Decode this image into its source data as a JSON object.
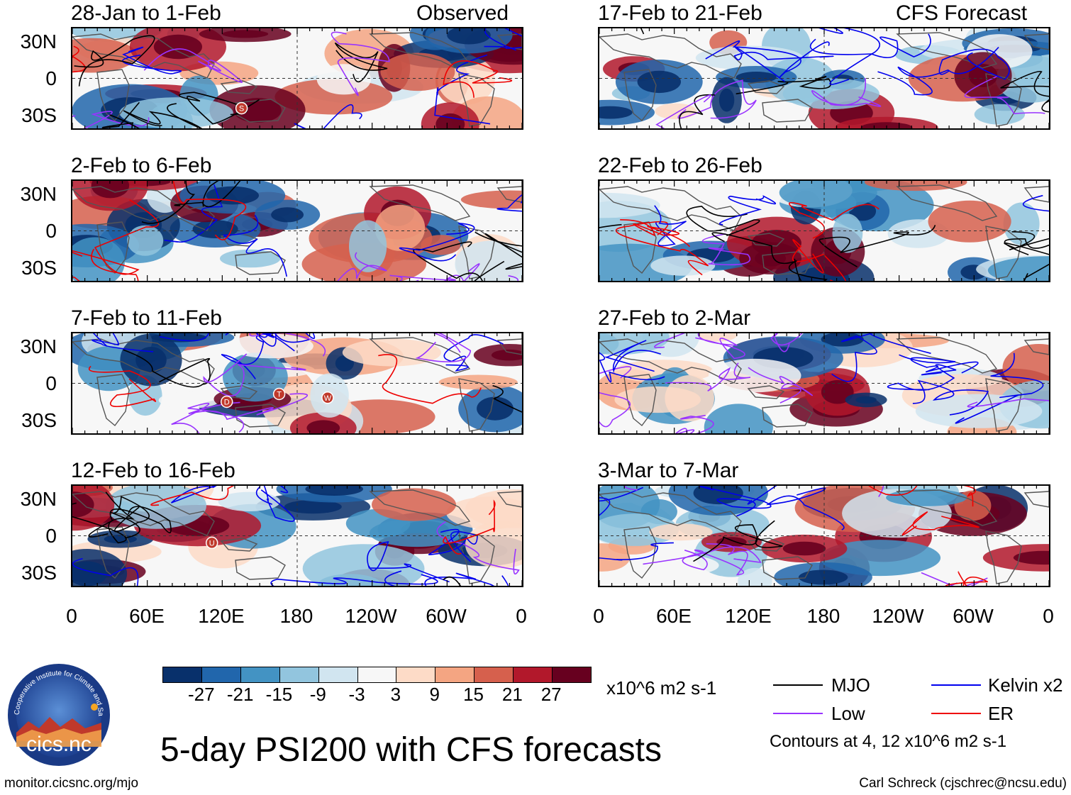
{
  "panels": [
    {
      "id": "p1",
      "title": "28-Jan to 1-Feb",
      "tag": "Observed",
      "seed": 3,
      "letters": [
        "S"
      ]
    },
    {
      "id": "p2",
      "title": "2-Feb to 6-Feb",
      "tag": "",
      "seed": 7,
      "letters": []
    },
    {
      "id": "p3",
      "title": "7-Feb to 11-Feb",
      "tag": "",
      "seed": 11,
      "letters": [
        "D",
        "T",
        "W"
      ]
    },
    {
      "id": "p4",
      "title": "12-Feb to 16-Feb",
      "tag": "",
      "seed": 19,
      "letters": [
        "U"
      ]
    },
    {
      "id": "p5",
      "title": "17-Feb to 21-Feb",
      "tag": "CFS Forecast",
      "seed": 23,
      "letters": []
    },
    {
      "id": "p6",
      "title": "22-Feb to 26-Feb",
      "tag": "",
      "seed": 29,
      "letters": []
    },
    {
      "id": "p7",
      "title": "27-Feb to 2-Mar",
      "tag": "",
      "seed": 31,
      "letters": []
    },
    {
      "id": "p8",
      "title": "3-Mar to 7-Mar",
      "tag": "",
      "seed": 37,
      "letters": []
    }
  ],
  "y_axis": [
    "30N",
    "0",
    "30S"
  ],
  "x_axis": [
    "0",
    "60E",
    "120E",
    "180",
    "120W",
    "60W",
    "0"
  ],
  "colorbar": {
    "colors": [
      "#08306b",
      "#2166ac",
      "#4393c3",
      "#92c5de",
      "#d1e5f0",
      "#f7f7f7",
      "#fddbc7",
      "#f4a582",
      "#d6604d",
      "#b2182b",
      "#67001f"
    ],
    "labels": [
      "-27",
      "-21",
      "-15",
      "-9",
      "-3",
      "3",
      "9",
      "15",
      "21",
      "27"
    ],
    "units": "x10^6 m2 s-1"
  },
  "legend": {
    "items": [
      {
        "label": "MJO",
        "color": "#000000"
      },
      {
        "label": "Kelvin x2",
        "color": "#0000ee"
      },
      {
        "label": "Low",
        "color": "#9933ff"
      },
      {
        "label": "ER",
        "color": "#ee0000"
      }
    ],
    "note": "Contours at 4, 12 x10^6 m2 s-1"
  },
  "logo": {
    "text": "cics.nc",
    "ring_text": "Cooperative Institute for Climate and Satellites"
  },
  "main_title": "5-day PSI200 with CFS forecasts",
  "url": "monitor.cicsnc.org/mjo",
  "credit": "Carl Schreck (cjschrec@ncsu.edu)"
}
